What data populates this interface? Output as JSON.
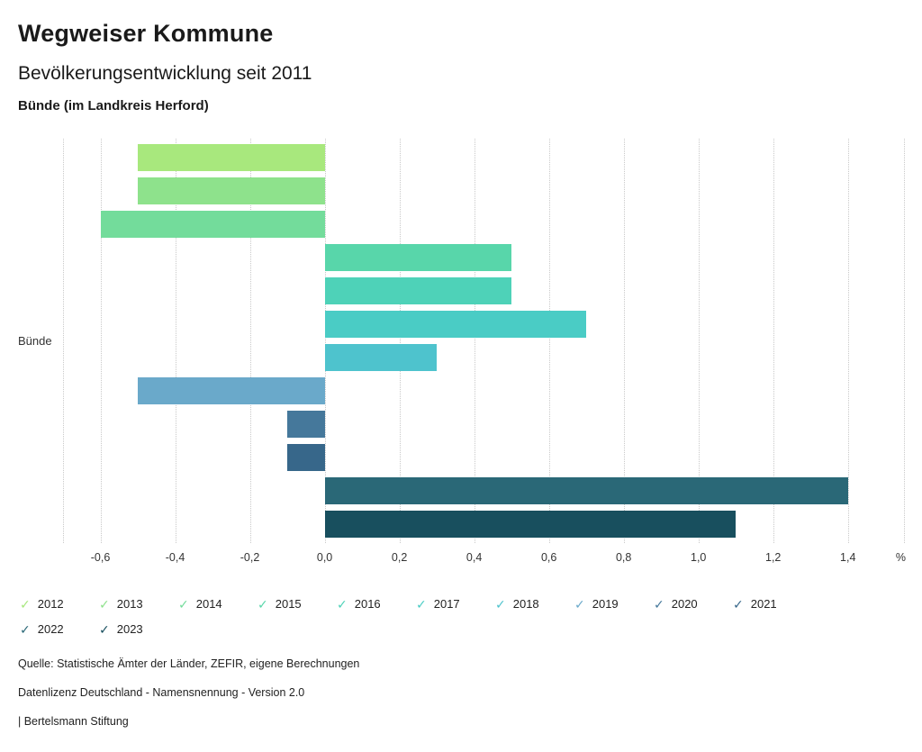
{
  "header": {
    "title": "Wegweiser Kommune",
    "subtitle": "Bevölkerungsentwicklung seit 2011",
    "location": "Bünde (im Landkreis Herford)"
  },
  "chart_data": {
    "type": "bar",
    "orientation": "horizontal",
    "title": "Bevölkerungsentwicklung seit 2011",
    "category": "Bünde",
    "unit": "%",
    "xlim": [
      -0.7,
      1.55
    ],
    "grid": "vertical-dotted",
    "legend_position": "bottom",
    "gridlines": [
      -0.7,
      -0.6,
      -0.4,
      -0.2,
      0.0,
      0.2,
      0.4,
      0.6,
      0.8,
      1.0,
      1.2,
      1.4,
      1.55
    ],
    "ticks": [
      {
        "value": -0.6,
        "label": "-0,6"
      },
      {
        "value": -0.4,
        "label": "-0,4"
      },
      {
        "value": -0.2,
        "label": "-0,2"
      },
      {
        "value": 0.0,
        "label": "0,0"
      },
      {
        "value": 0.2,
        "label": "0,2"
      },
      {
        "value": 0.4,
        "label": "0,4"
      },
      {
        "value": 0.6,
        "label": "0,6"
      },
      {
        "value": 0.8,
        "label": "0,8"
      },
      {
        "value": 1.0,
        "label": "1,0"
      },
      {
        "value": 1.2,
        "label": "1,2"
      },
      {
        "value": 1.4,
        "label": "1,4"
      }
    ],
    "series": [
      {
        "name": "2012",
        "value": -0.5,
        "color": "#a8e87d"
      },
      {
        "name": "2013",
        "value": -0.5,
        "color": "#8ee28c"
      },
      {
        "name": "2014",
        "value": -0.6,
        "color": "#73dc9b"
      },
      {
        "name": "2015",
        "value": 0.5,
        "color": "#58d6aa"
      },
      {
        "name": "2016",
        "value": 0.5,
        "color": "#4ed2b8"
      },
      {
        "name": "2017",
        "value": 0.7,
        "color": "#4accc5"
      },
      {
        "name": "2018",
        "value": 0.3,
        "color": "#4ec3cd"
      },
      {
        "name": "2019",
        "value": -0.5,
        "color": "#6aa9ca"
      },
      {
        "name": "2020",
        "value": -0.1,
        "color": "#45789b"
      },
      {
        "name": "2021",
        "value": -0.1,
        "color": "#37678a"
      },
      {
        "name": "2022",
        "value": 1.4,
        "color": "#2a6877"
      },
      {
        "name": "2023",
        "value": 1.1,
        "color": "#184f5e"
      }
    ]
  },
  "legend": {
    "check_glyph": "✓"
  },
  "footer": {
    "source": "Quelle: Statistische Ämter der Länder, ZEFIR, eigene Berechnungen",
    "license": "Datenlizenz Deutschland - Namensnennung - Version 2.0",
    "attribution": "| Bertelsmann Stiftung"
  }
}
